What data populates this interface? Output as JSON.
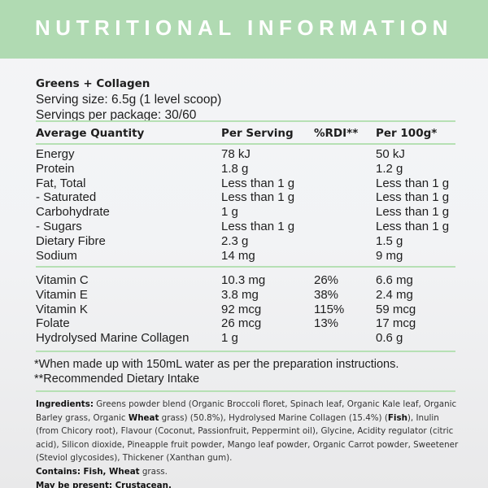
{
  "title": "NUTRITIONAL INFORMATION",
  "product": {
    "name": "Greens + Collagen",
    "serving_size": "Serving size: 6.5g (1 level scoop)",
    "servings": "Servings per package: 30/60"
  },
  "columns": [
    "Average Quantity",
    "Per Serving",
    "%RDI**",
    "Per 100g*"
  ],
  "nutrients": [
    [
      "Energy",
      "78 kJ",
      "",
      "50 kJ"
    ],
    [
      "Protein",
      "1.8 g",
      "",
      "1.2 g"
    ],
    [
      "Fat, Total",
      "Less than 1 g",
      "",
      "Less than 1 g"
    ],
    [
      "- Saturated",
      "Less than 1 g",
      "",
      "Less than 1 g"
    ],
    [
      "Carbohydrate",
      "1 g",
      "",
      "Less than 1 g"
    ],
    [
      "- Sugars",
      "Less than 1 g",
      "",
      "Less than 1 g"
    ],
    [
      "Dietary Fibre",
      "2.3 g",
      "",
      "1.5 g"
    ],
    [
      "Sodium",
      "14 mg",
      "",
      "9 mg"
    ]
  ],
  "vitamins": [
    [
      "Vitamin C",
      "10.3 mg",
      "26%",
      "6.6 mg"
    ],
    [
      "Vitamin E",
      "3.8 mg",
      "38%",
      "2.4 mg"
    ],
    [
      "Vitamin K",
      "92 mcg",
      "115%",
      "59 mcg"
    ],
    [
      "Folate",
      "26 mcg",
      "13%",
      "17 mcg"
    ],
    [
      "Hydrolysed Marine Collagen",
      "1 g",
      "",
      "0.6 g"
    ]
  ],
  "footnotes": [
    "*When made up with 150mL water as per the preparation instructions.",
    "**Recommended Dietary Intake"
  ],
  "ingredients": {
    "label": "Ingredients:",
    "t1": " Greens powder blend (Organic Broccoli floret, Spinach leaf, Organic Kale leaf, Organic Barley grass, Organic ",
    "b1": "Wheat",
    "t2": " grass) (50.8%), Hydrolysed Marine Collagen (15.4%) (",
    "b2": "Fish",
    "t3": "), Inulin (from Chicory root), Flavour (Coconut, Passionfruit, Peppermint oil), Glycine, Acidity regulator (citric acid), Silicon dioxide, Pineapple fruit powder, Mango leaf powder, Organic Carrot powder, Sweetener (Steviol glycosides), Thickener (Xanthan gum)."
  },
  "contains": {
    "label": "Contains: Fish, Wheat",
    "rest": " grass."
  },
  "may_contain": "May be present: Crustacean.",
  "colors": {
    "header": "#b0dab2",
    "divider": "#b6e0b4"
  }
}
